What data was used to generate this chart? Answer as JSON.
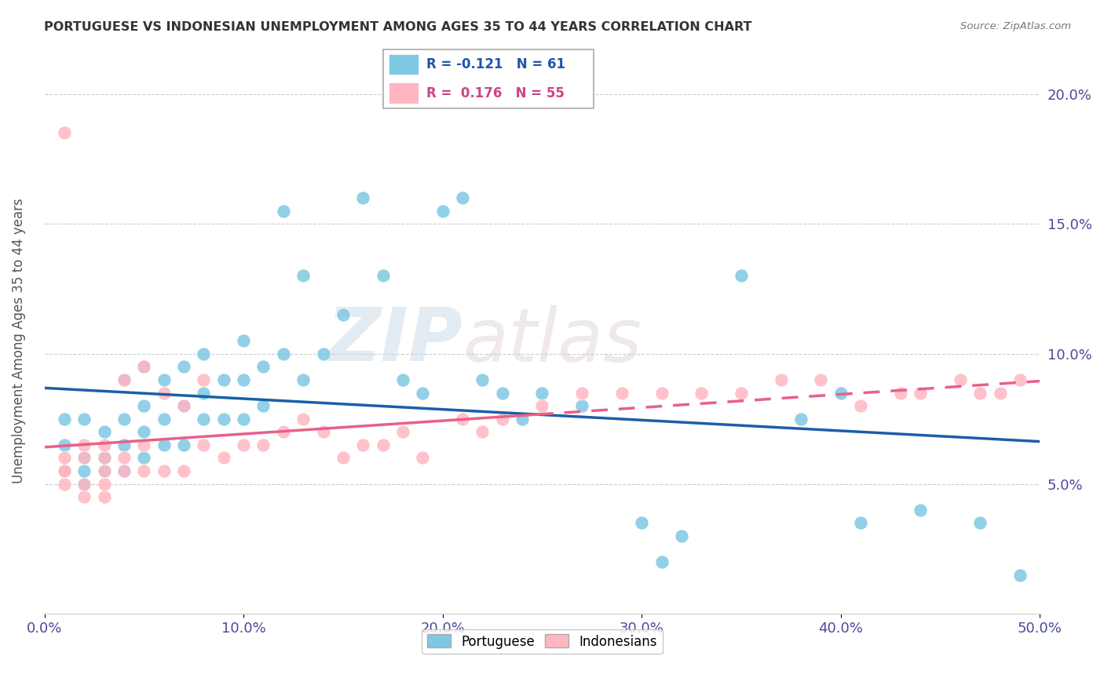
{
  "title": "PORTUGUESE VS INDONESIAN UNEMPLOYMENT AMONG AGES 35 TO 44 YEARS CORRELATION CHART",
  "source": "Source: ZipAtlas.com",
  "ylabel": "Unemployment Among Ages 35 to 44 years",
  "xlim": [
    0.0,
    0.5
  ],
  "ylim": [
    0.0,
    0.21
  ],
  "yticks": [
    0.05,
    0.1,
    0.15,
    0.2
  ],
  "ytick_labels": [
    "5.0%",
    "10.0%",
    "15.0%",
    "20.0%"
  ],
  "xtick_labels": [
    "0.0%",
    "10.0%",
    "20.0%",
    "30.0%",
    "40.0%",
    "50.0%"
  ],
  "blue_color": "#7ec8e3",
  "pink_color": "#ffb6c1",
  "blue_line_color": "#1a5fa8",
  "pink_line_color": "#e8608a",
  "pink_dash_color": "#e8608a",
  "watermark_zip": "ZIP",
  "watermark_atlas": "atlas",
  "legend_r_blue": "-0.121",
  "legend_n_blue": "61",
  "legend_r_pink": "0.176",
  "legend_n_pink": "55",
  "portuguese_x": [
    0.01,
    0.01,
    0.01,
    0.02,
    0.02,
    0.02,
    0.02,
    0.03,
    0.03,
    0.03,
    0.04,
    0.04,
    0.04,
    0.04,
    0.05,
    0.05,
    0.05,
    0.05,
    0.06,
    0.06,
    0.06,
    0.07,
    0.07,
    0.07,
    0.08,
    0.08,
    0.08,
    0.09,
    0.09,
    0.1,
    0.1,
    0.1,
    0.11,
    0.11,
    0.12,
    0.12,
    0.13,
    0.13,
    0.14,
    0.15,
    0.16,
    0.17,
    0.18,
    0.19,
    0.2,
    0.21,
    0.22,
    0.23,
    0.24,
    0.25,
    0.27,
    0.3,
    0.31,
    0.32,
    0.35,
    0.38,
    0.4,
    0.41,
    0.44,
    0.47,
    0.49
  ],
  "portuguese_y": [
    0.055,
    0.065,
    0.075,
    0.05,
    0.055,
    0.06,
    0.075,
    0.055,
    0.06,
    0.07,
    0.055,
    0.065,
    0.075,
    0.09,
    0.06,
    0.07,
    0.08,
    0.095,
    0.065,
    0.075,
    0.09,
    0.065,
    0.08,
    0.095,
    0.075,
    0.085,
    0.1,
    0.075,
    0.09,
    0.075,
    0.09,
    0.105,
    0.08,
    0.095,
    0.1,
    0.155,
    0.09,
    0.13,
    0.1,
    0.115,
    0.16,
    0.13,
    0.09,
    0.085,
    0.155,
    0.16,
    0.09,
    0.085,
    0.075,
    0.085,
    0.08,
    0.035,
    0.02,
    0.03,
    0.13,
    0.075,
    0.085,
    0.035,
    0.04,
    0.035,
    0.015
  ],
  "indonesian_x": [
    0.01,
    0.01,
    0.01,
    0.01,
    0.01,
    0.02,
    0.02,
    0.02,
    0.02,
    0.03,
    0.03,
    0.03,
    0.03,
    0.03,
    0.04,
    0.04,
    0.04,
    0.05,
    0.05,
    0.05,
    0.06,
    0.06,
    0.07,
    0.07,
    0.08,
    0.08,
    0.09,
    0.1,
    0.11,
    0.12,
    0.13,
    0.14,
    0.15,
    0.16,
    0.17,
    0.18,
    0.19,
    0.21,
    0.22,
    0.23,
    0.25,
    0.27,
    0.29,
    0.31,
    0.33,
    0.35,
    0.37,
    0.39,
    0.41,
    0.43,
    0.44,
    0.46,
    0.47,
    0.48,
    0.49
  ],
  "indonesian_y": [
    0.05,
    0.055,
    0.055,
    0.06,
    0.185,
    0.045,
    0.05,
    0.06,
    0.065,
    0.045,
    0.05,
    0.055,
    0.06,
    0.065,
    0.055,
    0.06,
    0.09,
    0.055,
    0.065,
    0.095,
    0.055,
    0.085,
    0.055,
    0.08,
    0.065,
    0.09,
    0.06,
    0.065,
    0.065,
    0.07,
    0.075,
    0.07,
    0.06,
    0.065,
    0.065,
    0.07,
    0.06,
    0.075,
    0.07,
    0.075,
    0.08,
    0.085,
    0.085,
    0.085,
    0.085,
    0.085,
    0.09,
    0.09,
    0.08,
    0.085,
    0.085,
    0.09,
    0.085,
    0.085,
    0.09
  ]
}
